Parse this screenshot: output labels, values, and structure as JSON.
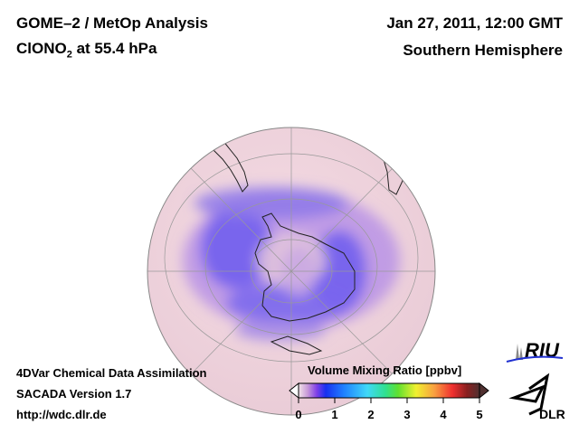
{
  "header": {
    "title_line1": "GOME–2 / MetOp Analysis",
    "species": "ClONO",
    "species_sub": "2",
    "species_level": " at 55.4 hPa",
    "date": "Jan 27, 2011, 12:00 GMT",
    "hemisphere": "Southern Hemisphere"
  },
  "footer": {
    "line1": "4DVar Chemical Data Assimilation",
    "line2": "SACADA Version 1.7",
    "line3": "http://wdc.dlr.de"
  },
  "colorbar": {
    "label": "Volume Mixing Ratio [ppbv]",
    "ticks": [
      "0",
      "1",
      "2",
      "3",
      "4",
      "5"
    ],
    "range": [
      0,
      5
    ],
    "colors": [
      "#f2e4e8",
      "#c89ad8",
      "#8040e8",
      "#1830f0",
      "#2080ff",
      "#40d8f8",
      "#30e090",
      "#60e030",
      "#f0f030",
      "#f8a040",
      "#f03030",
      "#e01818",
      "#8a2020",
      "#503030"
    ]
  },
  "logos": {
    "riu": "RIU",
    "dlr": "DLR"
  },
  "colors": {
    "background_field": "#efd6de",
    "low_field": "#6a5ae8"
  }
}
